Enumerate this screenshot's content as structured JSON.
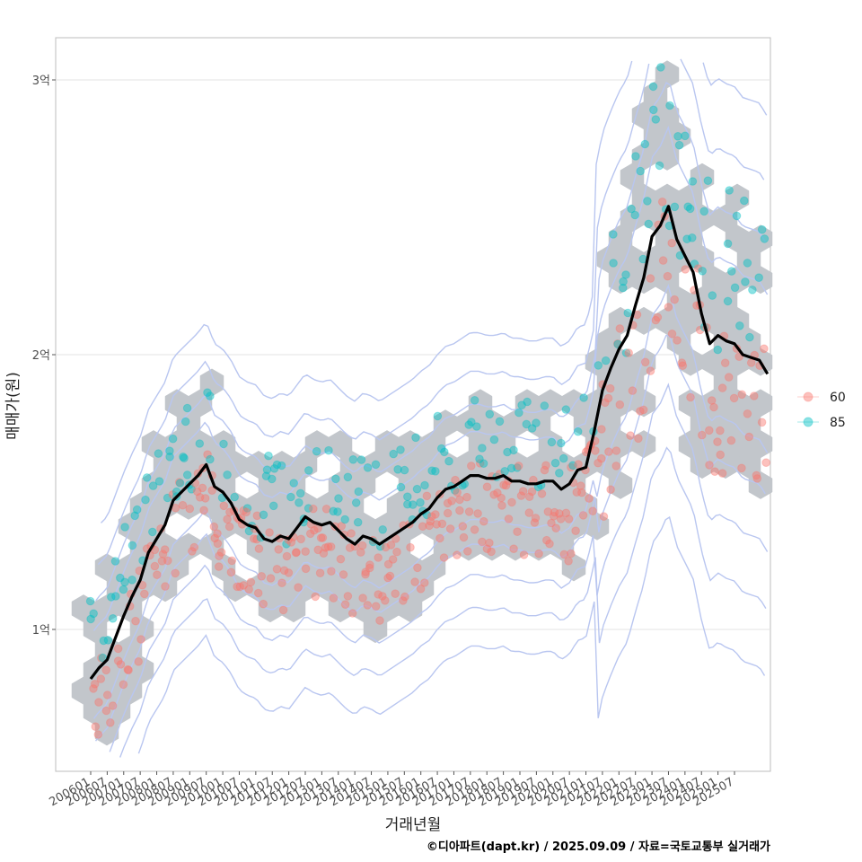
{
  "chart_data": {
    "type": "scatter",
    "xlabel": "거래년월",
    "ylabel": "매매가(원)",
    "caption": "©디아파트(dapt.kr) / 2025.09.09 / 자료=국토교통부 실거래가",
    "x_ticks": [
      "200601",
      "200607",
      "200701",
      "200707",
      "200801",
      "200807",
      "200901",
      "200907",
      "201001",
      "201007",
      "201101",
      "201107",
      "201201",
      "201207",
      "201301",
      "201307",
      "201401",
      "201407",
      "201501",
      "201507",
      "201601",
      "201607",
      "201701",
      "201707",
      "201801",
      "201807",
      "201901",
      "201907",
      "202001",
      "202007",
      "202101",
      "202107",
      "202201",
      "202207",
      "202301",
      "202307",
      "202401",
      "202407",
      "202501",
      "202507"
    ],
    "y_ticks": [
      {
        "value": 1.0,
        "label": "1억"
      },
      {
        "value": 2.0,
        "label": "2억"
      },
      {
        "value": 3.0,
        "label": "3억"
      }
    ],
    "xlim": [
      2005.82,
      2026.04
    ],
    "ylim": [
      0.52,
      3.15
    ],
    "y_unit": "억원",
    "grid": true,
    "legend_position": "right",
    "series": [
      {
        "name": "60",
        "color": "#F8766D"
      },
      {
        "name": "85",
        "color": "#00BFC4"
      }
    ],
    "trend": {
      "color": "#000000",
      "points": [
        [
          2006.0,
          0.82
        ],
        [
          2006.25,
          0.86
        ],
        [
          2006.5,
          0.89
        ],
        [
          2006.75,
          0.97
        ],
        [
          2007.0,
          1.05
        ],
        [
          2007.25,
          1.12
        ],
        [
          2007.5,
          1.18
        ],
        [
          2007.75,
          1.28
        ],
        [
          2008.0,
          1.33
        ],
        [
          2008.25,
          1.38
        ],
        [
          2008.5,
          1.47
        ],
        [
          2008.75,
          1.5
        ],
        [
          2009.0,
          1.53
        ],
        [
          2009.25,
          1.56
        ],
        [
          2009.5,
          1.6
        ],
        [
          2009.75,
          1.52
        ],
        [
          2010.0,
          1.5
        ],
        [
          2010.25,
          1.46
        ],
        [
          2010.5,
          1.4
        ],
        [
          2010.75,
          1.38
        ],
        [
          2011.0,
          1.37
        ],
        [
          2011.25,
          1.33
        ],
        [
          2011.5,
          1.32
        ],
        [
          2011.75,
          1.34
        ],
        [
          2012.0,
          1.33
        ],
        [
          2012.25,
          1.37
        ],
        [
          2012.5,
          1.41
        ],
        [
          2012.75,
          1.39
        ],
        [
          2013.0,
          1.38
        ],
        [
          2013.25,
          1.39
        ],
        [
          2013.5,
          1.36
        ],
        [
          2013.75,
          1.33
        ],
        [
          2014.0,
          1.31
        ],
        [
          2014.25,
          1.34
        ],
        [
          2014.5,
          1.33
        ],
        [
          2014.75,
          1.31
        ],
        [
          2015.0,
          1.33
        ],
        [
          2015.25,
          1.35
        ],
        [
          2015.5,
          1.37
        ],
        [
          2015.75,
          1.39
        ],
        [
          2016.0,
          1.42
        ],
        [
          2016.25,
          1.44
        ],
        [
          2016.5,
          1.48
        ],
        [
          2016.75,
          1.51
        ],
        [
          2017.0,
          1.52
        ],
        [
          2017.25,
          1.54
        ],
        [
          2017.5,
          1.56
        ],
        [
          2017.75,
          1.56
        ],
        [
          2018.0,
          1.55
        ],
        [
          2018.25,
          1.55
        ],
        [
          2018.5,
          1.56
        ],
        [
          2018.75,
          1.54
        ],
        [
          2019.0,
          1.54
        ],
        [
          2019.25,
          1.53
        ],
        [
          2019.5,
          1.53
        ],
        [
          2019.75,
          1.54
        ],
        [
          2020.0,
          1.54
        ],
        [
          2020.25,
          1.51
        ],
        [
          2020.5,
          1.53
        ],
        [
          2020.75,
          1.58
        ],
        [
          2021.0,
          1.59
        ],
        [
          2021.25,
          1.72
        ],
        [
          2021.5,
          1.87
        ],
        [
          2021.75,
          1.95
        ],
        [
          2022.0,
          2.02
        ],
        [
          2022.25,
          2.07
        ],
        [
          2022.5,
          2.18
        ],
        [
          2022.75,
          2.28
        ],
        [
          2023.0,
          2.43
        ],
        [
          2023.25,
          2.47
        ],
        [
          2023.5,
          2.54
        ],
        [
          2023.75,
          2.42
        ],
        [
          2024.0,
          2.36
        ],
        [
          2024.25,
          2.3
        ],
        [
          2024.5,
          2.15
        ],
        [
          2024.75,
          2.04
        ],
        [
          2025.0,
          2.07
        ],
        [
          2025.25,
          2.05
        ],
        [
          2025.5,
          2.04
        ],
        [
          2025.75,
          2.0
        ],
        [
          2026.0,
          1.99
        ],
        [
          2026.25,
          1.98
        ],
        [
          2026.5,
          1.93
        ]
      ]
    }
  }
}
